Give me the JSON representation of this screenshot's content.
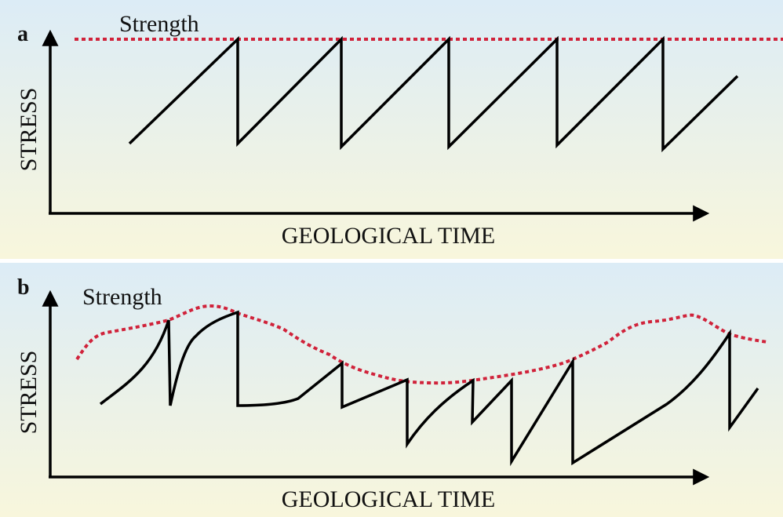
{
  "panels": [
    {
      "label": "a",
      "strength_label": "Strength",
      "y_axis_label": "STRESS",
      "x_axis_label": "GEOLOGICAL TIME"
    },
    {
      "label": "b",
      "strength_label": "Strength",
      "y_axis_label": "STRESS",
      "x_axis_label": "GEOLOGICAL TIME"
    }
  ]
}
